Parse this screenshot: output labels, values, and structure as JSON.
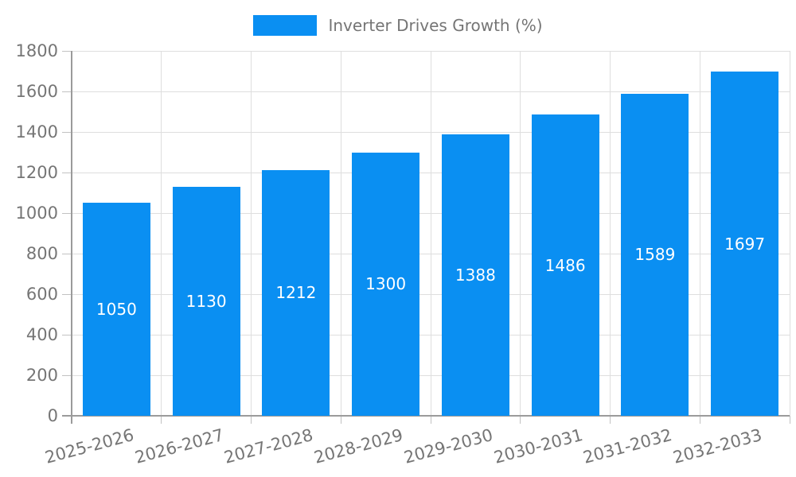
{
  "chart_data": {
    "type": "bar",
    "legend": "Inverter Drives Growth (%)",
    "categories": [
      "2025-2026",
      "2026-2027",
      "2027-2028",
      "2028-2029",
      "2029-2030",
      "2030-2031",
      "2031-2032",
      "2032-2033"
    ],
    "values": [
      1050,
      1130,
      1212,
      1300,
      1388,
      1486,
      1589,
      1697
    ],
    "ylim": [
      0,
      1800
    ],
    "yticks": [
      0,
      200,
      400,
      600,
      800,
      1000,
      1200,
      1400,
      1600,
      1800
    ],
    "grid": "on",
    "legend_position": "top-center",
    "xlabel": "",
    "ylabel": "",
    "bar_labels_inside": true,
    "colors": {
      "bar": "#0a8ff2",
      "grid_line": "#dedede",
      "tick_mark": "#c2c2c2",
      "axis_line": "#9b9b9b",
      "tick_text": "#757575",
      "legend_text": "#757575",
      "bar_label_text": "#ffffff",
      "background": "#ffffff"
    }
  }
}
